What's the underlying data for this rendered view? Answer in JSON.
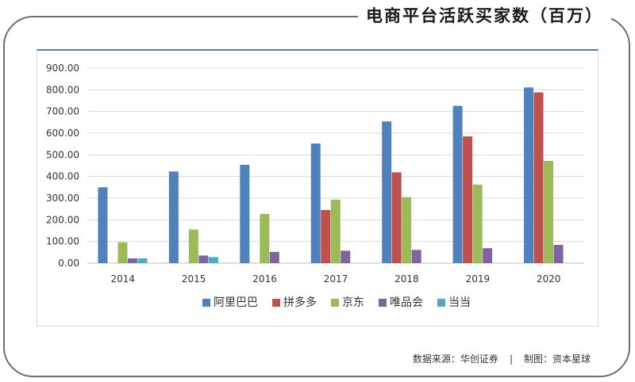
{
  "title": "电商平台活跃买家数（百万）",
  "footer": {
    "source": "数据来源：华创证券",
    "separator": "|",
    "credit": "制图：资本星球"
  },
  "chart_data": {
    "type": "bar",
    "title": "电商平台活跃买家数（百万）",
    "categories": [
      "2014",
      "2015",
      "2016",
      "2017",
      "2018",
      "2019",
      "2020"
    ],
    "ylim": [
      0,
      900
    ],
    "y_ticks": [
      "0.00",
      "100.00",
      "200.00",
      "300.00",
      "400.00",
      "500.00",
      "600.00",
      "700.00",
      "800.00",
      "900.00"
    ],
    "grid": true,
    "legend_position": "bottom",
    "series": [
      {
        "name": "阿里巴巴",
        "color": "#4f81bd",
        "values": [
          350,
          423,
          454,
          552,
          654,
          726,
          811
        ]
      },
      {
        "name": "拼多多",
        "color": "#c0504d",
        "values": [
          null,
          null,
          null,
          245,
          419,
          585,
          788
        ]
      },
      {
        "name": "京东",
        "color": "#9bbb59",
        "values": [
          96,
          155,
          227,
          293,
          305,
          362,
          472
        ]
      },
      {
        "name": "唯品会",
        "color": "#8064a2",
        "values": [
          22,
          35,
          52,
          57,
          61,
          69,
          84
        ]
      },
      {
        "name": "当当",
        "color": "#4bacc6",
        "values": [
          22,
          28,
          null,
          null,
          null,
          null,
          null
        ]
      }
    ]
  }
}
